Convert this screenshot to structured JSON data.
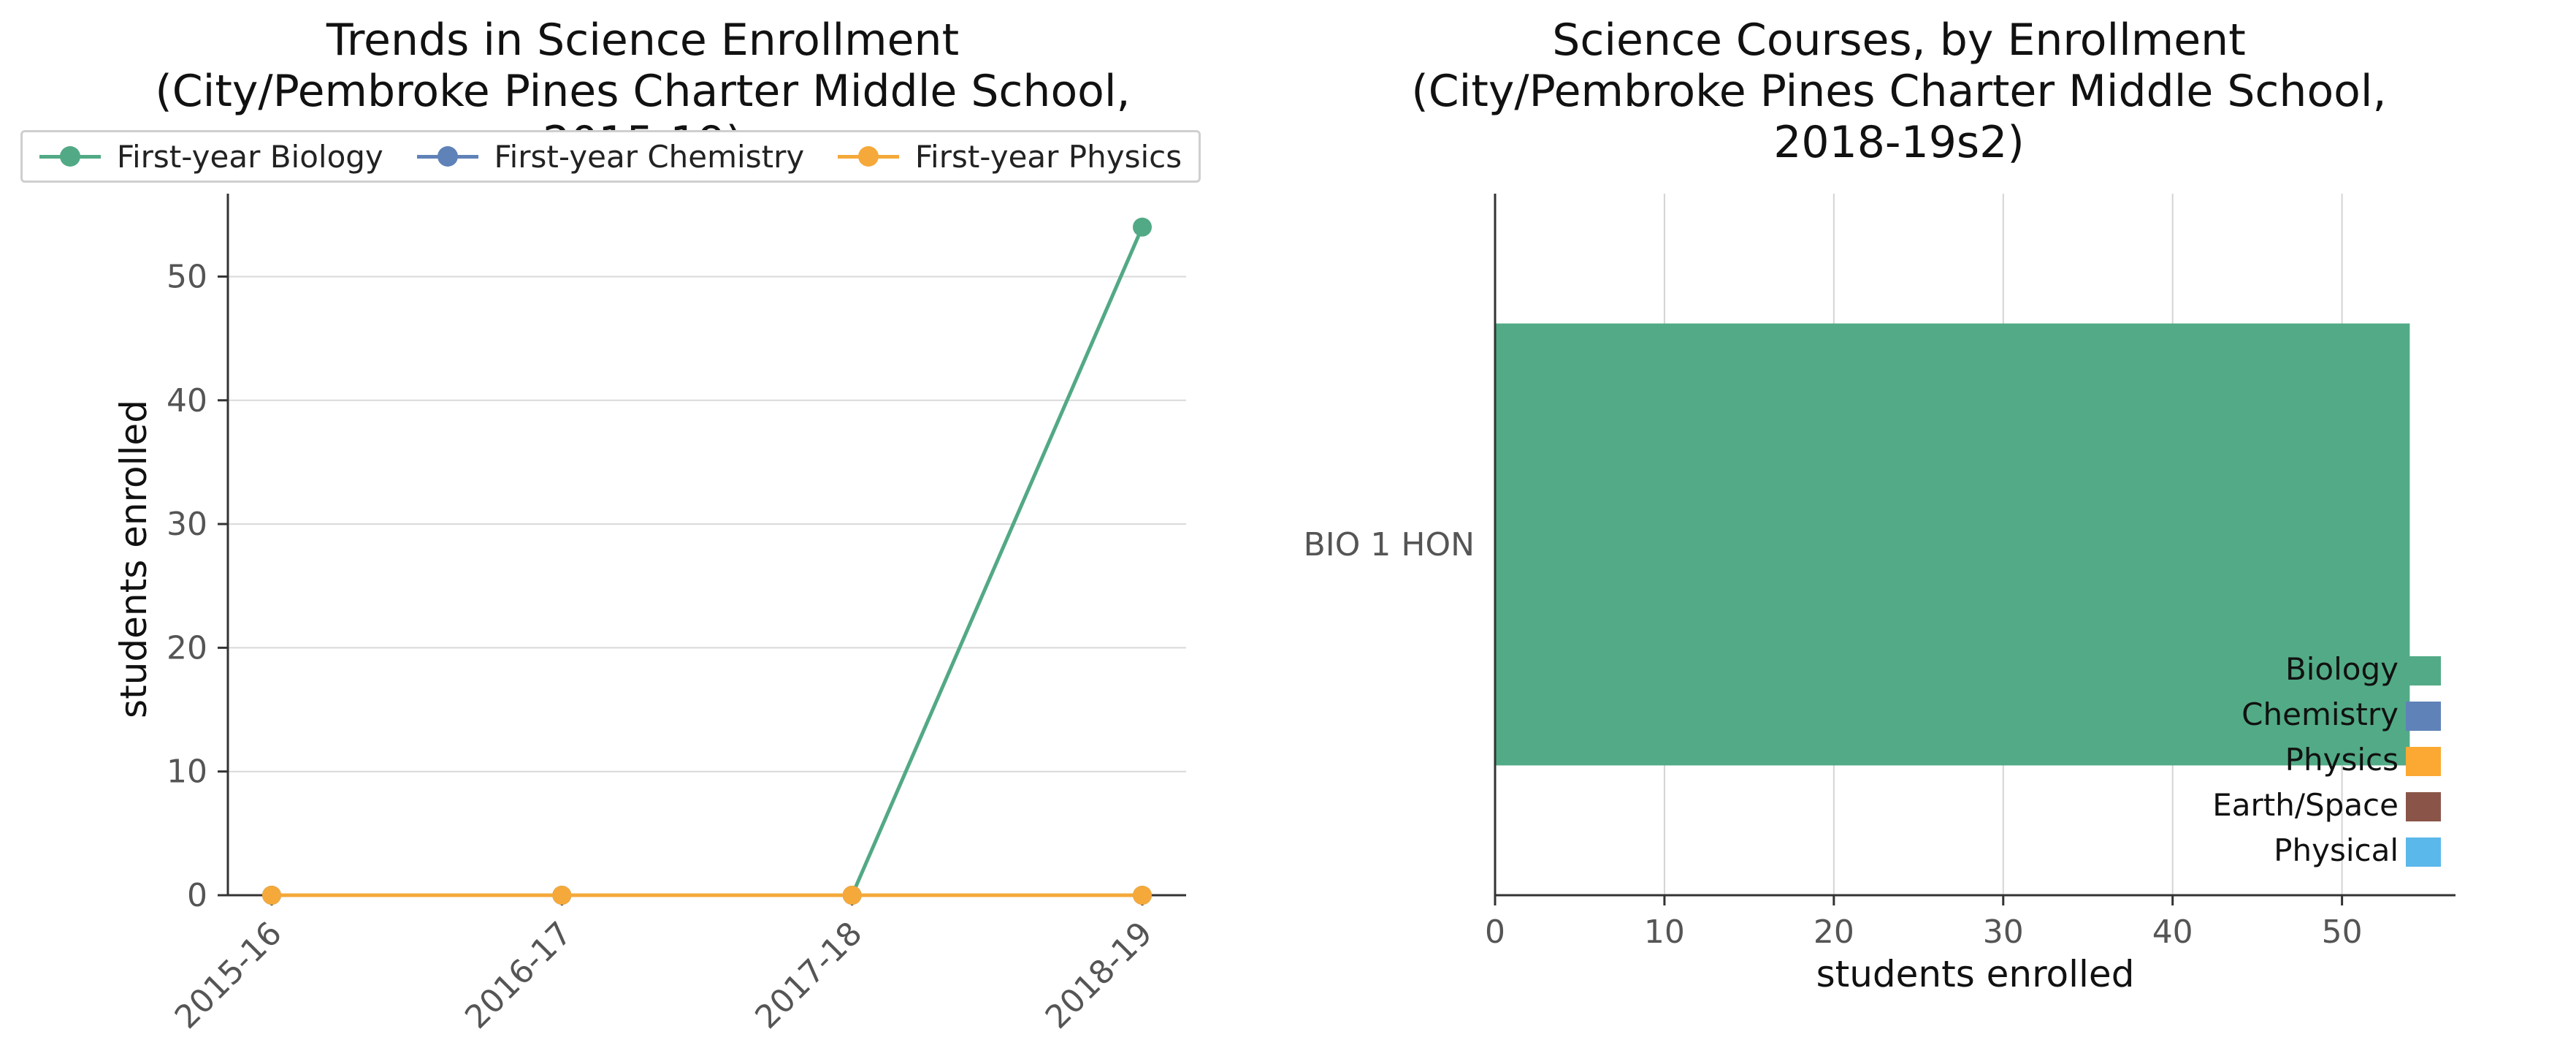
{
  "chart_data": [
    {
      "type": "line",
      "title": [
        "Trends in Science Enrollment",
        "(City/Pembroke Pines Charter Middle School, 2015-19)"
      ],
      "xlabel": "",
      "ylabel": "students enrolled",
      "categories": [
        "2015-16",
        "2016-17",
        "2017-18",
        "2018-19"
      ],
      "ylim": [
        0,
        56.7
      ],
      "yticks": [
        0,
        10,
        20,
        30,
        40,
        50
      ],
      "grid": "horizontal",
      "legend_position": "top",
      "series": [
        {
          "name": "First-year Biology",
          "color": "#52a985",
          "values": [
            0,
            0,
            0,
            54
          ]
        },
        {
          "name": "First-year Chemistry",
          "color": "#5f82b8",
          "values": [
            0,
            0,
            0,
            0
          ]
        },
        {
          "name": "First-year Physics",
          "color": "#f5a93a",
          "values": [
            0,
            0,
            0,
            0
          ]
        }
      ]
    },
    {
      "type": "bar",
      "orientation": "horizontal",
      "title": [
        "Science Courses, by Enrollment",
        "(City/Pembroke Pines Charter Middle School, 2018-19s2)"
      ],
      "xlabel": "students enrolled",
      "ylabel": "",
      "categories": [
        "BIO 1 HON"
      ],
      "values": [
        54
      ],
      "bar_colors": [
        "#52ab86"
      ],
      "xlim": [
        0,
        56.7
      ],
      "xticks": [
        0,
        10,
        20,
        30,
        40,
        50
      ],
      "grid": "vertical",
      "legend_position": "bottom-right",
      "legend": [
        {
          "label": "Biology",
          "color": "#52ab86"
        },
        {
          "label": "Chemistry",
          "color": "#5f82b8"
        },
        {
          "label": "Physics",
          "color": "#fba933"
        },
        {
          "label": "Earth/Space",
          "color": "#8a5548"
        },
        {
          "label": "Physical",
          "color": "#5bb8ea"
        }
      ]
    }
  ]
}
